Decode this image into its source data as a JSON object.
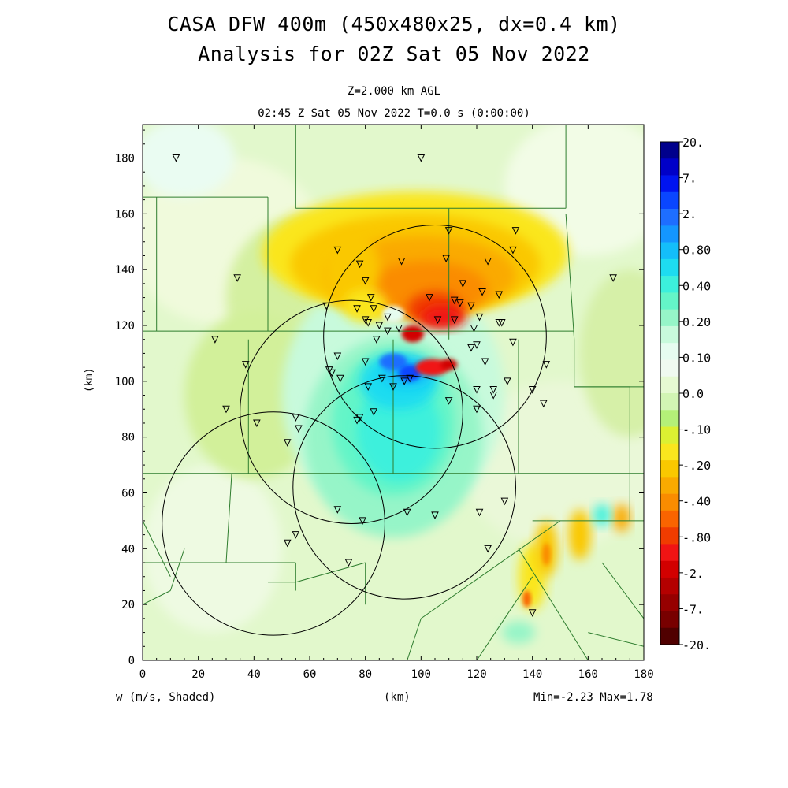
{
  "header": {
    "title_line1": "CASA DFW 400m (450x480x25, dx=0.4 km)",
    "title_line2": "Analysis for 02Z Sat 05 Nov 2022",
    "level": "Z=2.000 km AGL",
    "valid_time": "02:45 Z Sat 05 Nov 2022    T=0.0 s (0:00:00)"
  },
  "footer": {
    "variable": "w (m/s, Shaded)",
    "x_unit": "(km)",
    "minmax": "Min=-2.23 Max=1.78"
  },
  "chart_data": {
    "type": "heatmap",
    "field": "w (m/s, Shaded)",
    "xlabel": "(km)",
    "ylabel": "(km)",
    "xlim": [
      0,
      180
    ],
    "ylim": [
      0,
      192
    ],
    "x_ticks": [
      0,
      20,
      40,
      60,
      80,
      100,
      120,
      140,
      160,
      180
    ],
    "y_ticks": [
      0,
      20,
      40,
      60,
      80,
      100,
      120,
      140,
      160,
      180
    ],
    "min": -2.23,
    "max": 1.78,
    "colorbar": {
      "labels": [
        "20.",
        "7.",
        "2.",
        "0.80",
        "0.40",
        "0.20",
        "0.10",
        "0.0",
        "-.10",
        "-.20",
        "-.40",
        "-.80",
        "-2.",
        "-7.",
        "-20."
      ],
      "colors": [
        "#00008c",
        "#0000c8",
        "#0014f0",
        "#0a46ff",
        "#1e6eff",
        "#1496ff",
        "#14befa",
        "#1edcf0",
        "#3cf0dc",
        "#64f5c8",
        "#96f5c8",
        "#c8fadc",
        "#e6fcf0",
        "#f0faf0",
        "#e6fad2",
        "#d2f5b4",
        "#b4f078",
        "#dcf032",
        "#fae61e",
        "#fac800",
        "#faaa00",
        "#fa8c00",
        "#fa6400",
        "#f03c00",
        "#f01414",
        "#d20000",
        "#b40000",
        "#960000",
        "#780000",
        "#500000"
      ]
    },
    "radar_rings": [
      {
        "center": [
          105,
          116
        ],
        "radius": 40
      },
      {
        "center": [
          75,
          89
        ],
        "radius": 40
      },
      {
        "center": [
          94,
          62
        ],
        "radius": 40
      },
      {
        "center": [
          47,
          49
        ],
        "radius": 40
      }
    ],
    "stations": [
      [
        12,
        180
      ],
      [
        100,
        180
      ],
      [
        134,
        154
      ],
      [
        110,
        154
      ],
      [
        133,
        147
      ],
      [
        70,
        147
      ],
      [
        109,
        144
      ],
      [
        93,
        143
      ],
      [
        124,
        143
      ],
      [
        34,
        137
      ],
      [
        78,
        142
      ],
      [
        80,
        136
      ],
      [
        169,
        137
      ],
      [
        115,
        135
      ],
      [
        122,
        132
      ],
      [
        128,
        131
      ],
      [
        82,
        130
      ],
      [
        103,
        130
      ],
      [
        112,
        129
      ],
      [
        114,
        128
      ],
      [
        118,
        127
      ],
      [
        66,
        127
      ],
      [
        77,
        126
      ],
      [
        83,
        126
      ],
      [
        88,
        123
      ],
      [
        106,
        122
      ],
      [
        112,
        122
      ],
      [
        121,
        123
      ],
      [
        80,
        122
      ],
      [
        81,
        121
      ],
      [
        85,
        120
      ],
      [
        128,
        121
      ],
      [
        129,
        121
      ],
      [
        119,
        119
      ],
      [
        88,
        118
      ],
      [
        92,
        119
      ],
      [
        84,
        115
      ],
      [
        26,
        115
      ],
      [
        133,
        114
      ],
      [
        118,
        112
      ],
      [
        123,
        107
      ],
      [
        70,
        109
      ],
      [
        80,
        107
      ],
      [
        37,
        106
      ],
      [
        145,
        106
      ],
      [
        120,
        113
      ],
      [
        67,
        104
      ],
      [
        68,
        103
      ],
      [
        71,
        101
      ],
      [
        131,
        100
      ],
      [
        94,
        100
      ],
      [
        126,
        97
      ],
      [
        81,
        98
      ],
      [
        90,
        98
      ],
      [
        96,
        101
      ],
      [
        86,
        101
      ],
      [
        120,
        97
      ],
      [
        140,
        97
      ],
      [
        126,
        95
      ],
      [
        144,
        92
      ],
      [
        110,
        93
      ],
      [
        30,
        90
      ],
      [
        120,
        90
      ],
      [
        83,
        89
      ],
      [
        55,
        87
      ],
      [
        77,
        86
      ],
      [
        78,
        87
      ],
      [
        56,
        83
      ],
      [
        41,
        85
      ],
      [
        52,
        78
      ],
      [
        70,
        54
      ],
      [
        79,
        50
      ],
      [
        95,
        53
      ],
      [
        105,
        52
      ],
      [
        121,
        53
      ],
      [
        130,
        57
      ],
      [
        55,
        45
      ],
      [
        52,
        42
      ],
      [
        124,
        40
      ],
      [
        74,
        35
      ],
      [
        140,
        17
      ]
    ]
  }
}
